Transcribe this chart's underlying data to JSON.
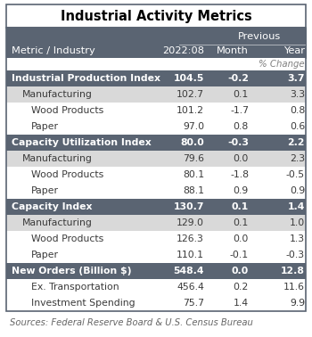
{
  "title": "Industrial Activity Metrics",
  "pct_change_label": "% Change",
  "rows": [
    {
      "label": "Industrial Production Index",
      "val": "104.5",
      "month": "-0.2",
      "year": "3.7",
      "type": "header"
    },
    {
      "label": "Manufacturing",
      "val": "102.7",
      "month": "0.1",
      "year": "3.3",
      "type": "sub1"
    },
    {
      "label": "Wood Products",
      "val": "101.2",
      "month": "-1.7",
      "year": "0.8",
      "type": "sub2"
    },
    {
      "label": "Paper",
      "val": "97.0",
      "month": "0.8",
      "year": "0.6",
      "type": "sub2"
    },
    {
      "label": "Capacity Utilization Index",
      "val": "80.0",
      "month": "-0.3",
      "year": "2.2",
      "type": "header"
    },
    {
      "label": "Manufacturing",
      "val": "79.6",
      "month": "0.0",
      "year": "2.3",
      "type": "sub1"
    },
    {
      "label": "Wood Products",
      "val": "80.1",
      "month": "-1.8",
      "year": "-0.5",
      "type": "sub2"
    },
    {
      "label": "Paper",
      "val": "88.1",
      "month": "0.9",
      "year": "0.9",
      "type": "sub2"
    },
    {
      "label": "Capacity Index",
      "val": "130.7",
      "month": "0.1",
      "year": "1.4",
      "type": "header"
    },
    {
      "label": "Manufacturing",
      "val": "129.0",
      "month": "0.1",
      "year": "1.0",
      "type": "sub1"
    },
    {
      "label": "Wood Products",
      "val": "126.3",
      "month": "0.0",
      "year": "1.3",
      "type": "sub2"
    },
    {
      "label": "Paper",
      "val": "110.1",
      "month": "-0.1",
      "year": "-0.3",
      "type": "sub2"
    },
    {
      "label": "New Orders (Billion $)",
      "val": "548.4",
      "month": "0.0",
      "year": "12.8",
      "type": "header"
    },
    {
      "label": "Ex. Transportation",
      "val": "456.4",
      "month": "0.2",
      "year": "11.6",
      "type": "sub2"
    },
    {
      "label": "Investment Spending",
      "val": "75.7",
      "month": "1.4",
      "year": "9.9",
      "type": "sub2"
    }
  ],
  "source": "Sources: Federal Reserve Board & U.S. Census Bureau",
  "header_bg": "#5a6472",
  "header_text": "#ffffff",
  "sub1_bg": "#d9d9d9",
  "sub2_bg": "#ffffff",
  "border_color": "#5a6472",
  "title_fontsize": 10.5,
  "header_fontsize": 8.2,
  "data_fontsize": 7.8,
  "source_fontsize": 7.2,
  "fig_width": 3.5,
  "fig_height": 3.78,
  "dpi": 100
}
